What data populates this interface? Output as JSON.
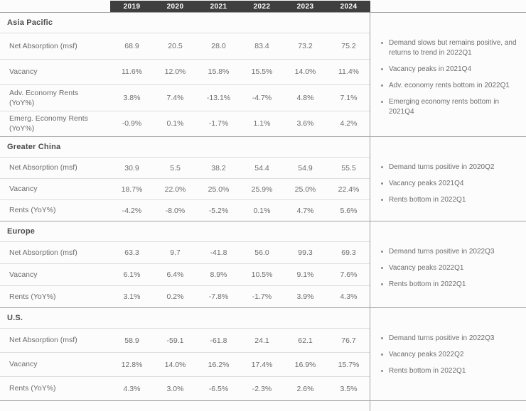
{
  "header": {
    "years": [
      "2019",
      "2020",
      "2021",
      "2022",
      "2023",
      "2024"
    ]
  },
  "colors": {
    "header_bar": "#3f3f3f",
    "body_text": "#6d6d6d",
    "title_text": "#4c4c4c",
    "section_line": "#a3a3a3",
    "row_line": "#dddddd"
  },
  "icons": {
    "bullet": "bullet-dot-icon"
  },
  "sections": [
    {
      "region": "Asia Pacific",
      "rows": [
        {
          "label": "Net Absorption (msf)",
          "values": [
            "68.9",
            "20.5",
            "28.0",
            "83.4",
            "73.2",
            "75.2"
          ]
        },
        {
          "label": "Vacancy",
          "values": [
            "11.6%",
            "12.0%",
            "15.8%",
            "15.5%",
            "14.0%",
            "11.4%"
          ]
        },
        {
          "label": "Adv. Economy Rents\n(YoY%)",
          "values": [
            "3.8%",
            "7.4%",
            "-13.1%",
            "-4.7%",
            "4.8%",
            "7.1%"
          ]
        },
        {
          "label": "Emerg. Economy Rents\n(YoY%)",
          "values": [
            "-0.9%",
            "0.1%",
            "-1.7%",
            "1.1%",
            "3.6%",
            "4.2%"
          ]
        }
      ],
      "notes": [
        "Demand slows but remains positive, and returns to trend in 2022Q1",
        "Vacancy peaks in 2021Q4",
        "Adv. economy rents bottom in 2022Q1",
        "Emerging economy rents bottom in 2021Q4"
      ]
    },
    {
      "region": "Greater China",
      "rows": [
        {
          "label": "Net Absorption (msf)",
          "values": [
            "30.9",
            "5.5",
            "38.2",
            "54.4",
            "54.9",
            "55.5"
          ]
        },
        {
          "label": "Vacancy",
          "values": [
            "18.7%",
            "22.0%",
            "25.0%",
            "25.9%",
            "25.0%",
            "22.4%"
          ]
        },
        {
          "label": "Rents (YoY%)",
          "values": [
            "-4.2%",
            "-8.0%",
            "-5.2%",
            "0.1%",
            "4.7%",
            "5.6%"
          ]
        }
      ],
      "notes": [
        "Demand turns positive in 2020Q2",
        "Vacancy peaks 2021Q4",
        "Rents bottom in 2022Q1"
      ]
    },
    {
      "region": "Europe",
      "rows": [
        {
          "label": "Net Absorption (msf)",
          "values": [
            "63.3",
            "9.7",
            "-41.8",
            "56.0",
            "99.3",
            "69.3"
          ]
        },
        {
          "label": "Vacancy",
          "values": [
            "6.1%",
            "6.4%",
            "8.9%",
            "10.5%",
            "9.1%",
            "7.6%"
          ]
        },
        {
          "label": "Rents (YoY%)",
          "values": [
            "3.1%",
            "0.2%",
            "-7.8%",
            "-1.7%",
            "3.9%",
            "4.3%"
          ]
        }
      ],
      "notes": [
        "Demand turns positive in 2022Q3",
        "Vacancy peaks 2022Q1",
        "Rents bottom in 2022Q1"
      ]
    },
    {
      "region": "U.S.",
      "rows": [
        {
          "label": "Net Absorption (msf)",
          "values": [
            "58.9",
            "-59.1",
            "-61.8",
            "24.1",
            "62.1",
            "76.7"
          ]
        },
        {
          "label": "Vacancy",
          "values": [
            "12.8%",
            "14.0%",
            "16.2%",
            "17.4%",
            "16.9%",
            "15.7%"
          ]
        },
        {
          "label": "Rents (YoY%)",
          "values": [
            "4.3%",
            "3.0%",
            "-6.5%",
            "-2.3%",
            "2.6%",
            "3.5%"
          ]
        }
      ],
      "notes": [
        "Demand turns positive in 2022Q3",
        "Vacancy peaks 2022Q2",
        "Rents bottom in 2022Q1"
      ]
    }
  ]
}
